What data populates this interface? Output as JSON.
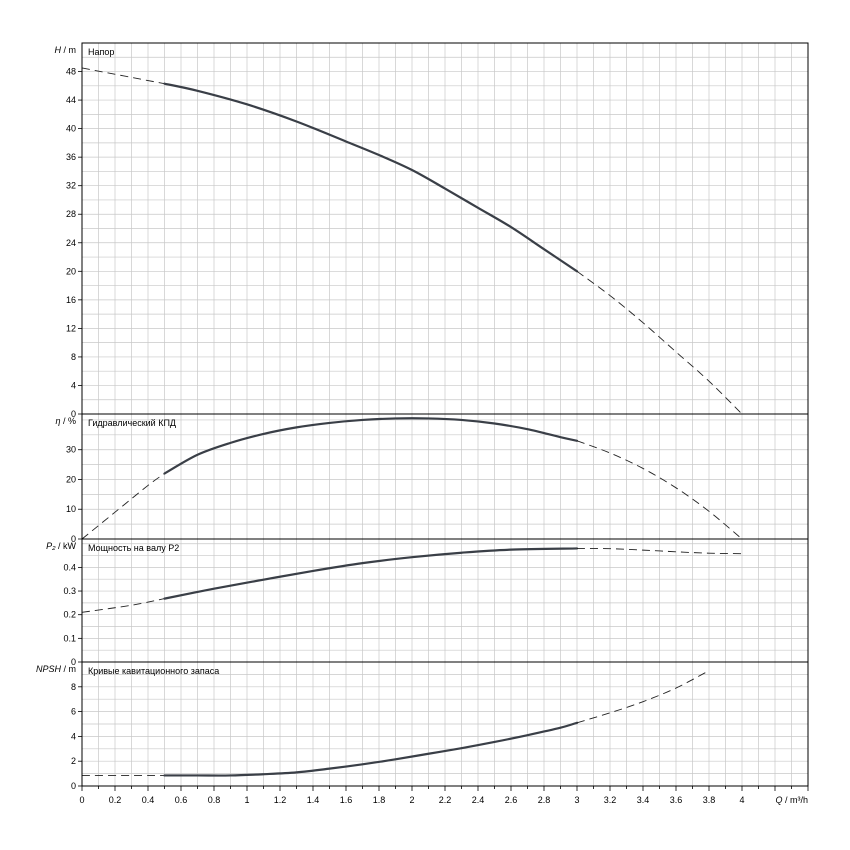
{
  "chart_data": [
    {
      "type": "line",
      "title": "Напор",
      "ylabel_symbol": "H",
      "ylabel_unit": " / m",
      "ylim": [
        0,
        52
      ],
      "yticks": [
        0,
        4,
        8,
        12,
        16,
        20,
        24,
        28,
        32,
        36,
        40,
        44,
        48
      ],
      "xlim": [
        0,
        4.4
      ],
      "grid": true,
      "series": [
        {
          "x": [
            0,
            0.5,
            0.7,
            1.0,
            1.3,
            1.6,
            1.8,
            2.0,
            2.2,
            2.4,
            2.6,
            2.8,
            3.0
          ],
          "y": [
            48.5,
            46.3,
            45.3,
            43.4,
            41.0,
            38.2,
            36.3,
            34.2,
            31.6,
            28.9,
            26.2,
            23.1,
            20.0
          ],
          "style": "solid",
          "solid_range": [
            0.5,
            3.0
          ]
        },
        {
          "x": [
            3.0,
            3.2,
            3.4,
            3.6,
            3.8,
            4.0
          ],
          "y": [
            20.0,
            16.6,
            12.8,
            8.7,
            4.6,
            0
          ],
          "style": "dashed"
        }
      ]
    },
    {
      "type": "line",
      "title": "Гидравлический КПД",
      "ylabel_symbol": "η",
      "ylabel_unit": " / %",
      "ylim": [
        0,
        42
      ],
      "yticks": [
        0,
        10,
        20,
        30
      ],
      "xlim": [
        0,
        4.4
      ],
      "grid": true,
      "series": [
        {
          "x": [
            0,
            0.2,
            0.4,
            0.5,
            0.7,
            0.9,
            1.1,
            1.3,
            1.5,
            1.7,
            1.9,
            2.1,
            2.3,
            2.5,
            2.7,
            2.9,
            3.0
          ],
          "y": [
            0,
            9,
            18,
            22,
            28.3,
            32.3,
            35.3,
            37.5,
            39.0,
            40.0,
            40.5,
            40.5,
            40.0,
            38.8,
            36.9,
            34.2,
            33.0
          ],
          "style": "solid",
          "solid_range": [
            0.5,
            3.0
          ]
        },
        {
          "x": [
            3.0,
            3.2,
            3.4,
            3.6,
            3.8,
            4.0
          ],
          "y": [
            33.0,
            28.9,
            23.7,
            17.2,
            9.3,
            0
          ],
          "style": "dashed"
        }
      ]
    },
    {
      "type": "line",
      "title": "Мощность на валу P2",
      "ylabel_symbol": "P₂",
      "ylabel_unit": " / kW",
      "ylim": [
        0,
        0.52
      ],
      "yticks": [
        0,
        0.1,
        0.2,
        0.3,
        0.4
      ],
      "ytick_labels": [
        "0",
        "0.1",
        "0.2",
        "0.3",
        "0.4"
      ],
      "xlim": [
        0,
        4.4
      ],
      "grid": true,
      "series": [
        {
          "x": [
            0,
            0.3,
            0.5,
            0.8,
            1.1,
            1.4,
            1.7,
            2.0,
            2.3,
            2.6,
            3.0
          ],
          "y": [
            0.21,
            0.24,
            0.268,
            0.31,
            0.348,
            0.385,
            0.418,
            0.443,
            0.462,
            0.475,
            0.48
          ],
          "style": "solid",
          "solid_range": [
            0.5,
            3.0
          ]
        },
        {
          "x": [
            3.0,
            3.2,
            3.4,
            3.6,
            3.8,
            4.0
          ],
          "y": [
            0.48,
            0.479,
            0.473,
            0.466,
            0.46,
            0.458
          ],
          "style": "dashed"
        }
      ]
    },
    {
      "type": "line",
      "title": "Кривые кавитационного запаса",
      "ylabel_symbol": "NPSH",
      "ylabel_unit": " / m",
      "ylim": [
        0,
        10
      ],
      "yticks": [
        0,
        2,
        4,
        6,
        8
      ],
      "xlim": [
        0,
        4.4
      ],
      "xticks": [
        0,
        0.2,
        0.4,
        0.6,
        0.8,
        1,
        1.2,
        1.4,
        1.6,
        1.8,
        2,
        2.2,
        2.4,
        2.6,
        2.8,
        3,
        3.2,
        3.4,
        3.6,
        3.8,
        4
      ],
      "xlabel_symbol": "Q",
      "xlabel_unit": " / m³/h",
      "grid": true,
      "series": [
        {
          "x": [
            0,
            0.3,
            0.5,
            0.7,
            0.9,
            1.1,
            1.3,
            1.5,
            1.7,
            1.9,
            2.1,
            2.3,
            2.5,
            2.7,
            2.9,
            3.0
          ],
          "y": [
            0.85,
            0.85,
            0.85,
            0.85,
            0.85,
            0.95,
            1.1,
            1.4,
            1.75,
            2.15,
            2.6,
            3.05,
            3.55,
            4.1,
            4.7,
            5.1
          ],
          "style": "solid",
          "solid_range": [
            0.5,
            3.0
          ]
        },
        {
          "x": [
            3.0,
            3.2,
            3.4,
            3.6,
            3.8
          ],
          "y": [
            5.1,
            5.9,
            6.8,
            7.9,
            9.3
          ],
          "style": "dashed"
        }
      ]
    }
  ]
}
